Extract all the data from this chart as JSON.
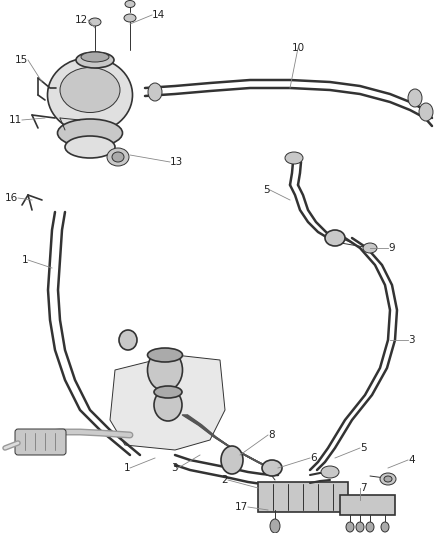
{
  "bg_color": "#ffffff",
  "line_color": "#333333",
  "label_color": "#222222",
  "leader_color": "#888888",
  "fill_light": "#e0e0e0",
  "fill_mid": "#c8c8c8",
  "fill_dark": "#aaaaaa",
  "lw_hose": 2.2,
  "lw_part": 1.2,
  "lw_thin": 0.7,
  "lw_leader": 0.6,
  "label_fs": 7.5
}
